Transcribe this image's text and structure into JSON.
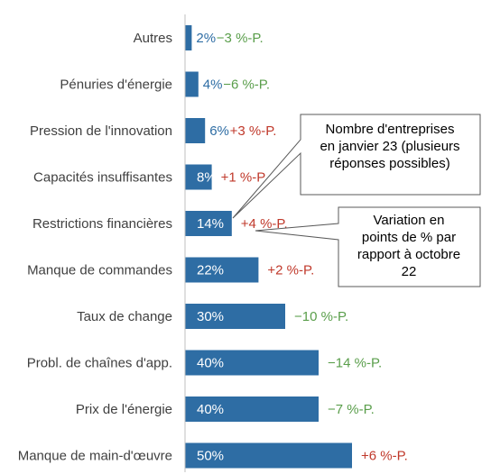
{
  "chart_data": {
    "type": "bar",
    "orientation": "horizontal",
    "categories": [
      "Autres",
      "Pénuries d'énergie",
      "Pression de l'innovation",
      "Capacités insuffisantes",
      "Restrictions financières",
      "Manque de commandes",
      "Taux de change",
      "Probl. de chaînes d'app.",
      "Prix de l'énergie",
      "Manque de main-d'œuvre"
    ],
    "values": [
      2,
      4,
      6,
      8,
      14,
      22,
      30,
      40,
      40,
      50
    ],
    "value_labels": [
      "2%",
      "4%",
      "6%",
      "8%",
      "14%",
      "22%",
      "30%",
      "40%",
      "40%",
      "50%"
    ],
    "changes": [
      -3,
      -6,
      3,
      1,
      4,
      2,
      -10,
      -14,
      -7,
      6
    ],
    "change_labels": [
      "−3 %-P.",
      "−6 %-P.",
      "+3 %-P.",
      "+1 %-P.",
      "+4 %-P.",
      "+2 %-P.",
      "−10 %-P.",
      "−14 %-P.",
      "−7 %-P.",
      "+6 %-P."
    ],
    "grid": false,
    "legend": "none"
  },
  "callouts": {
    "share": [
      "Nombre d'entreprises",
      "en janvier 23 (plusieurs",
      "réponses possibles)"
    ],
    "change": [
      "Variation en",
      "points de % par",
      "rapport à octobre",
      "22"
    ]
  },
  "colors": {
    "bar": "#2e6da4",
    "text": "#404040",
    "positive_change": "#c0392b",
    "negative_change": "#5a9e4b",
    "value_outside": "#2e6da4",
    "value_inside": "#ffffff",
    "axis": "#bfbfbf"
  }
}
